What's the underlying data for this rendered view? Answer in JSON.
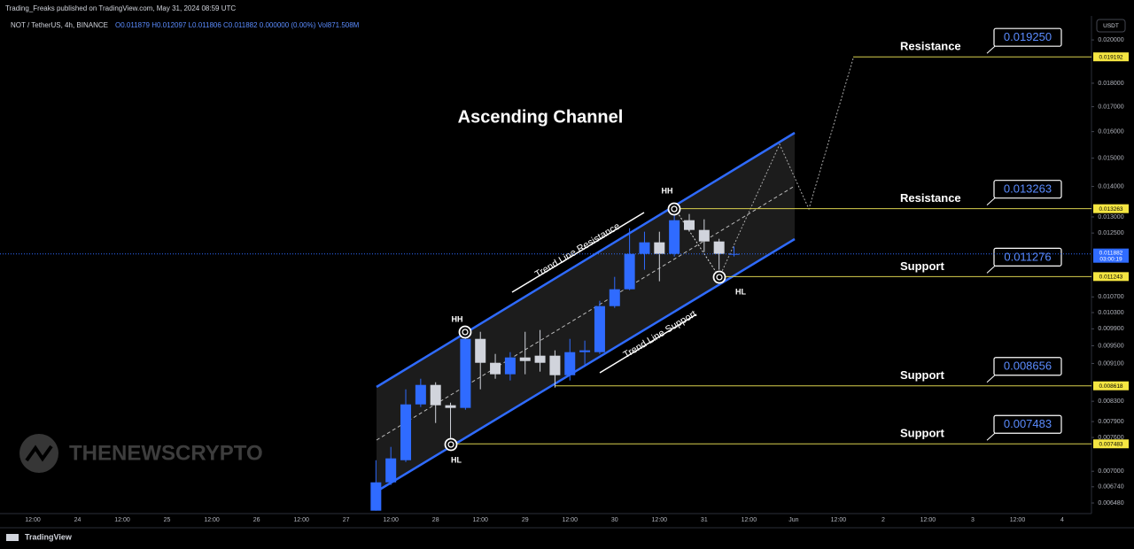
{
  "header": {
    "publisher": "Trading_Freaks published on TradingView.com, May 31, 2024 08:59 UTC",
    "symbol": "NOT / TetherUS, 4h, BINANCE",
    "ohlc": "O0.011879 H0.012097 L0.011806 C0.011882 0.000000 (0.00%) Vol871.508M",
    "currency": "USDT"
  },
  "watermark": "THENEWSCRYPTO",
  "footer": "TradingView",
  "annotations": {
    "title": "Ascending Channel",
    "upper_line": "Trend Line Resistance",
    "lower_line": "Trend Line Support",
    "points": [
      "HH",
      "HH",
      "HL",
      "HL"
    ]
  },
  "chart_data": {
    "type": "candlestick",
    "log_scale": true,
    "up_color": "#2f6bff",
    "down_color": "#d1d4dc",
    "level_color": "#d8cf4e",
    "price_color": "#2f6bff",
    "categories": [
      "12:00",
      null,
      null,
      "24",
      null,
      null,
      "12:00",
      null,
      null,
      "25",
      null,
      null,
      "12:00",
      null,
      null,
      "26",
      null,
      null,
      "12:00",
      null,
      null,
      "27",
      null,
      null,
      "12:00",
      null,
      null,
      "28",
      null,
      null,
      "12:00",
      null,
      null,
      "29",
      null,
      null,
      "12:00",
      null,
      null,
      "30",
      null,
      null,
      "12:00",
      null,
      null,
      "31",
      null,
      null,
      "12:00",
      null,
      null,
      "Jun",
      null,
      null,
      "12:00",
      null,
      null,
      "2",
      null,
      null,
      "12:00",
      null,
      null,
      "3",
      null,
      null,
      "12:00",
      null,
      null,
      "4",
      null,
      null
    ],
    "open": [
      null,
      null,
      null,
      null,
      null,
      null,
      null,
      null,
      null,
      null,
      null,
      null,
      null,
      null,
      null,
      null,
      null,
      null,
      null,
      null,
      null,
      null,
      null,
      0.00636,
      0.006814,
      0.007191,
      0.008237,
      0.008637,
      0.00822,
      0.008167,
      0.009661,
      0.009115,
      0.008864,
      0.009234,
      0.009274,
      0.009274,
      0.008844,
      0.009354,
      0.009354,
      0.010463,
      0.010901,
      0.011882,
      0.01222,
      0.011882,
      0.012896,
      0.012594,
      0.012246,
      0.011879,
      null,
      null,
      null,
      null,
      null,
      null,
      null,
      null,
      null,
      null,
      null,
      null,
      null,
      null,
      null,
      null,
      null,
      null,
      null,
      null,
      null,
      null,
      null,
      null
    ],
    "high": [
      null,
      null,
      null,
      null,
      null,
      null,
      null,
      null,
      null,
      null,
      null,
      null,
      null,
      null,
      null,
      null,
      null,
      null,
      null,
      null,
      null,
      null,
      null,
      0.007191,
      0.007428,
      0.008545,
      0.008768,
      0.008693,
      0.008272,
      0.009872,
      0.009829,
      0.009314,
      0.009354,
      0.009829,
      0.009872,
      0.009395,
      0.009661,
      0.00962,
      0.0106,
      0.011235,
      0.012648,
      0.01254,
      0.01254,
      0.013149,
      0.013093,
      0.012924,
      0.012325,
      0.012097,
      null,
      null,
      null,
      null,
      null,
      null,
      null,
      null,
      null,
      null,
      null,
      null,
      null,
      null,
      null,
      null,
      null,
      null,
      null,
      null,
      null,
      null,
      null,
      null
    ],
    "low": [
      null,
      null,
      null,
      null,
      null,
      null,
      null,
      null,
      null,
      null,
      null,
      null,
      null,
      null,
      null,
      null,
      null,
      null,
      null,
      null,
      null,
      null,
      null,
      0.00636,
      0.00677,
      0.00716,
      0.008185,
      0.007873,
      0.007589,
      0.008131,
      0.008545,
      0.008768,
      0.008731,
      0.008864,
      0.008921,
      0.008581,
      0.008731,
      0.009076,
      0.009314,
      0.010418,
      0.010877,
      0.011431,
      0.011115,
      0.011805,
      0.01254,
      0.011933,
      0.011431,
      0.011806,
      null,
      null,
      null,
      null,
      null,
      null,
      null,
      null,
      null,
      null,
      null,
      null,
      null,
      null,
      null,
      null,
      null,
      null,
      null,
      null,
      null,
      null,
      null,
      null
    ],
    "close": [
      null,
      null,
      null,
      null,
      null,
      null,
      null,
      null,
      null,
      null,
      null,
      null,
      null,
      null,
      null,
      null,
      null,
      null,
      null,
      null,
      null,
      null,
      null,
      0.006814,
      0.007223,
      0.008237,
      0.008637,
      0.00822,
      0.008167,
      0.009661,
      0.009115,
      0.008864,
      0.009234,
      0.009154,
      0.009115,
      0.008844,
      0.009354,
      0.009395,
      0.010463,
      0.010901,
      0.011882,
      0.01222,
      0.011882,
      0.012896,
      0.012594,
      0.012246,
      0.011882,
      0.011882,
      null,
      null,
      null,
      null,
      null,
      null,
      null,
      null,
      null,
      null,
      null,
      null,
      null,
      null,
      null,
      null,
      null,
      null,
      null,
      null,
      null,
      null,
      null,
      null
    ],
    "ylim": [
      0.006315,
      0.02157
    ],
    "yticks": [
      {
        "value": 0.02,
        "label": "0.020000"
      },
      {
        "value": 0.018,
        "label": "0.018000"
      },
      {
        "value": 0.017,
        "label": "0.017000"
      },
      {
        "value": 0.016,
        "label": "0.016000"
      },
      {
        "value": 0.015,
        "label": "0.015000"
      },
      {
        "value": 0.014,
        "label": "0.014000"
      },
      {
        "value": 0.013,
        "label": "0.013000"
      },
      {
        "value": 0.0125,
        "label": "0.012500"
      },
      {
        "value": 0.0107,
        "label": "0.010700"
      },
      {
        "value": 0.0103,
        "label": "0.010300"
      },
      {
        "value": 0.0099,
        "label": "0.009900"
      },
      {
        "value": 0.0095,
        "label": "0.009500"
      },
      {
        "value": 0.0091,
        "label": "0.009100"
      },
      {
        "value": 0.0083,
        "label": "0.008300"
      },
      {
        "value": 0.0079,
        "label": "0.007900"
      },
      {
        "value": 0.0076,
        "label": "0.007600"
      },
      {
        "value": 0.007,
        "label": "0.007000"
      },
      {
        "value": 0.00674,
        "label": "0.006740"
      },
      {
        "value": 0.00648,
        "label": "0.006480"
      }
    ],
    "last_price": {
      "value": 0.011882,
      "label": "0.011882"
    },
    "countdown": "03:00:19",
    "levels": [
      {
        "label": "Resistance",
        "box": "0.019250",
        "price": {
          "value": 0.019192,
          "label": "0.019192"
        }
      },
      {
        "label": "Resistance",
        "box": "0.013263",
        "price": {
          "value": 0.013263,
          "label": "0.013263"
        }
      },
      {
        "label": "Support",
        "box": "0.011276",
        "price": {
          "value": 0.011243,
          "label": "0.011243"
        }
      },
      {
        "label": "Support",
        "box": "0.008656",
        "price": {
          "value": 0.008618,
          "label": "0.008618"
        }
      },
      {
        "label": "Support",
        "box": "0.007483",
        "price": {
          "value": 0.007483,
          "label": "0.007483"
        }
      }
    ]
  }
}
